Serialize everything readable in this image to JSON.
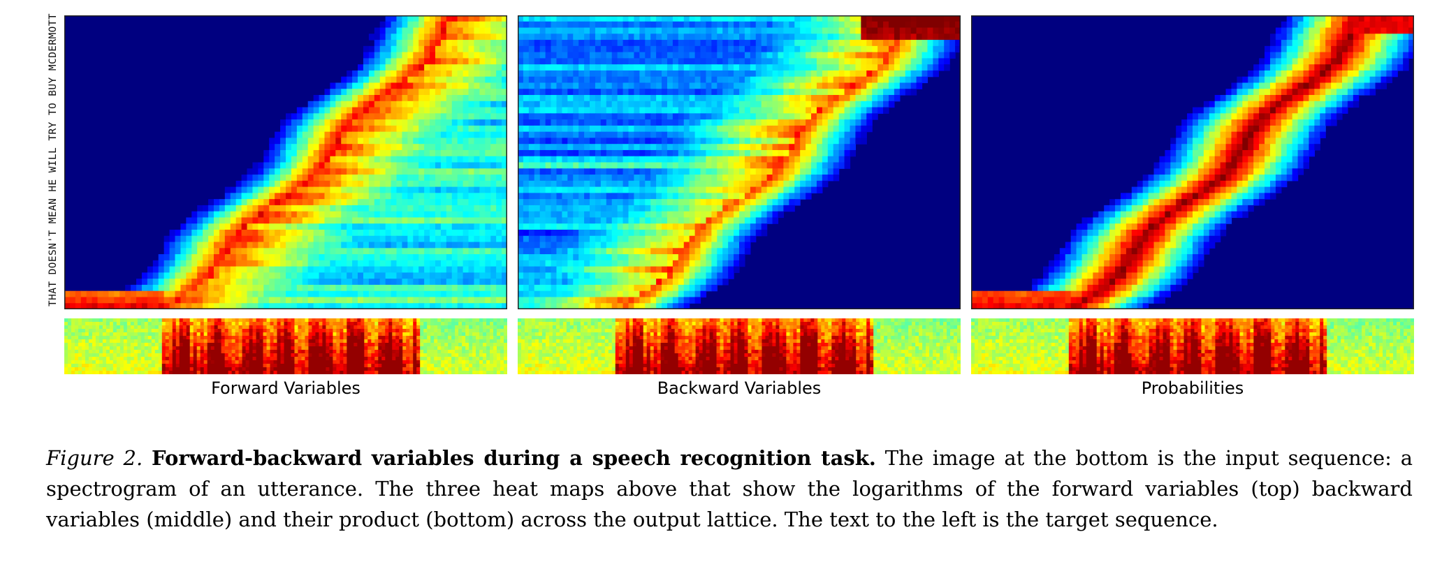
{
  "target_sequence": "THAT DOESN'T MEAN HE WILL TRY TO BUY MCDERMOTT",
  "panels": [
    {
      "label": "Forward Variables"
    },
    {
      "label": "Backward Variables"
    },
    {
      "label": "Probabilities"
    }
  ],
  "caption": {
    "figure_label": "Figure 2.",
    "title": "Forward-backward variables during a speech recognition task.",
    "body": "The image at the bottom is the input sequence: a spectrogram of an utterance. The three heat maps above that show the logarithms of the forward variables (top) backward variables (middle) and their product (bottom) across the output lattice. The text to the left is the target sequence."
  },
  "colors": {
    "colormap": "jet",
    "background_low": "#00008B",
    "high": "#800000"
  }
}
